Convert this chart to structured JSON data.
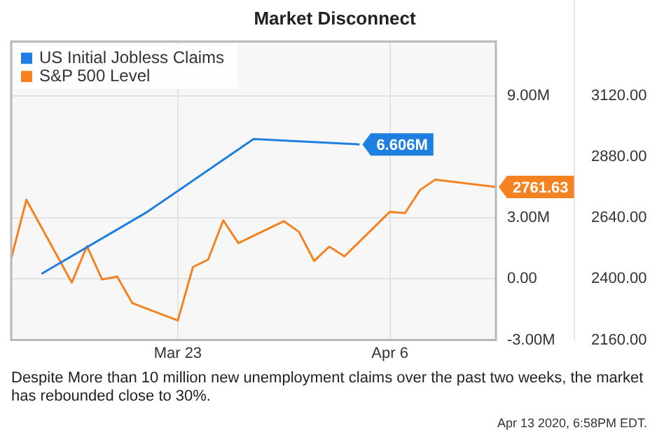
{
  "chart_data": {
    "type": "line",
    "title": "Market Disconnect",
    "xlim": [
      "--03-12",
      "--04-13"
    ],
    "xticks": [
      {
        "value": "--03-23",
        "label": "Mar 23"
      },
      {
        "value": "--04-06",
        "label": "Apr 6"
      }
    ],
    "ylim": [
      -3000000,
      11660000
    ],
    "yticks": [
      {
        "value": -3000000,
        "label": "-3.00M"
      },
      {
        "value": 0,
        "label": "0.00"
      },
      {
        "value": 3000000,
        "label": "3.00M"
      },
      {
        "value": 9000000,
        "label": "9.00M"
      }
    ],
    "y2lim": [
      2160,
      3333
    ],
    "y2ticks": [
      {
        "value": 2160,
        "label": "2160.00"
      },
      {
        "value": 2400,
        "label": "2400.00"
      },
      {
        "value": 2640,
        "label": "2640.00"
      },
      {
        "value": 2880,
        "label": "2880.00"
      },
      {
        "value": 3120,
        "label": "3120.00"
      }
    ],
    "series": [
      {
        "name": "US Initial Jobless Claims",
        "color": "#1f7fe0",
        "x": [
          "--03-14",
          "--03-21",
          "--03-28",
          "--04-04"
        ],
        "values": [
          250000,
          3300000,
          6870000,
          6606000
        ],
        "value_labels": [
          null,
          null,
          null,
          "6.606M"
        ]
      },
      {
        "name": "S&P 500 Level",
        "color": "#f58220",
        "axis": "y2",
        "x": [
          "--03-12",
          "--03-13",
          "--03-16",
          "--03-17",
          "--03-18",
          "--03-19",
          "--03-20",
          "--03-23",
          "--03-24",
          "--03-25",
          "--03-26",
          "--03-27",
          "--03-30",
          "--03-31",
          "--04-01",
          "--04-02",
          "--04-03",
          "--04-06",
          "--04-07",
          "--04-08",
          "--04-09",
          "--04-13"
        ],
        "values": [
          2480,
          2711,
          2386,
          2529,
          2398,
          2409,
          2305,
          2237,
          2447,
          2476,
          2630,
          2541,
          2627,
          2585,
          2471,
          2527,
          2489,
          2664,
          2659,
          2750,
          2790,
          2761.63
        ],
        "value_labels": [
          null,
          null,
          null,
          null,
          null,
          null,
          null,
          null,
          null,
          null,
          null,
          null,
          null,
          null,
          null,
          null,
          null,
          null,
          null,
          null,
          null,
          "2761.63"
        ]
      }
    ],
    "grid": true,
    "legend": "top left",
    "marker": "none",
    "line_style": "solid",
    "annotations": [
      "Despite More than 10 million new unemployment claims over the past two weeks, the market has rebounded close to 30%.",
      "Apr 13 2020, 6:58PM EDT."
    ]
  }
}
